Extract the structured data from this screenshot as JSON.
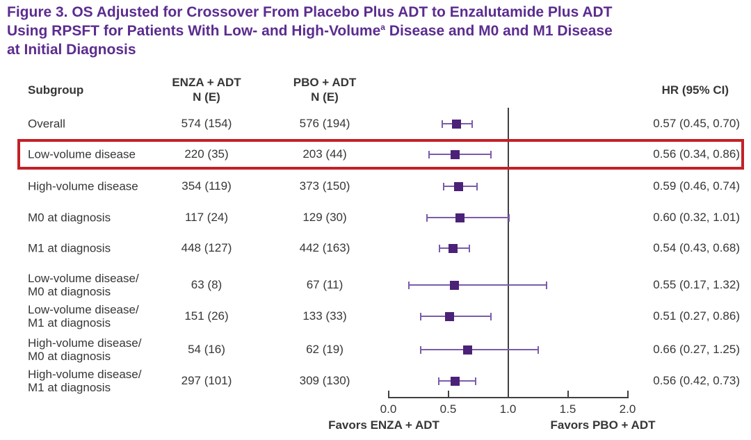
{
  "figure": {
    "title_line1": "Figure 3. OS Adjusted for Crossover From Placebo Plus ADT to Enzalutamide Plus ADT",
    "title_line2_pre": "Using RPSFT for Patients With Low- and High-Volume",
    "title_line2_sup": "a",
    "title_line2_post": " Disease and M0 and M1 Disease",
    "title_line3": "at Initial Diagnosis"
  },
  "table_headers": {
    "subgroup": "Subgroup",
    "enza_line1": "ENZA + ADT",
    "enza_line2": "N (E)",
    "pbo_line1": "PBO + ADT",
    "pbo_line2": "N (E)",
    "hr": "HR (95% CI)"
  },
  "chart_data": {
    "type": "forest",
    "x_axis": {
      "min": 0,
      "max": 2,
      "ref_line": 1.0,
      "ticks": [
        {
          "label": "0.0",
          "value": 0.0
        },
        {
          "label": "0.5",
          "value": 0.5
        },
        {
          "label": "1.0",
          "value": 1.0
        },
        {
          "label": "1.5",
          "value": 1.5
        },
        {
          "label": "2.0",
          "value": 2.0
        }
      ]
    },
    "favors_left": "Favors ENZA + ADT",
    "favors_right": "Favors PBO + ADT",
    "rows": [
      {
        "subgroup": "Overall",
        "enza_ne": "574 (154)",
        "pbo_ne": "576 (194)",
        "hr": 0.57,
        "ci_low": 0.45,
        "ci_high": 0.7,
        "hr_text": "0.57 (0.45, 0.70)",
        "highlighted": false
      },
      {
        "subgroup": "Low-volume disease",
        "enza_ne": "220 (35)",
        "pbo_ne": "203 (44)",
        "hr": 0.56,
        "ci_low": 0.34,
        "ci_high": 0.86,
        "hr_text": "0.56 (0.34, 0.86)",
        "highlighted": true
      },
      {
        "subgroup": "High-volume disease",
        "enza_ne": "354 (119)",
        "pbo_ne": "373 (150)",
        "hr": 0.59,
        "ci_low": 0.46,
        "ci_high": 0.74,
        "hr_text": "0.59 (0.46, 0.74)",
        "highlighted": false
      },
      {
        "subgroup": "M0 at diagnosis",
        "enza_ne": "117 (24)",
        "pbo_ne": "129 (30)",
        "hr": 0.6,
        "ci_low": 0.32,
        "ci_high": 1.01,
        "hr_text": "0.60 (0.32, 1.01)",
        "highlighted": false
      },
      {
        "subgroup": "M1 at diagnosis",
        "enza_ne": "448 (127)",
        "pbo_ne": "442 (163)",
        "hr": 0.54,
        "ci_low": 0.43,
        "ci_high": 0.68,
        "hr_text": "0.54 (0.43, 0.68)",
        "highlighted": false
      },
      {
        "subgroup": "Low-volume disease/M0 at diagnosis",
        "enza_ne": "63 (8)",
        "pbo_ne": "67 (11)",
        "hr": 0.55,
        "ci_low": 0.17,
        "ci_high": 1.32,
        "hr_text": "0.55 (0.17, 1.32)",
        "highlighted": false
      },
      {
        "subgroup": "Low-volume disease/M1 at diagnosis",
        "enza_ne": "151 (26)",
        "pbo_ne": "133 (33)",
        "hr": 0.51,
        "ci_low": 0.27,
        "ci_high": 0.86,
        "hr_text": "0.51 (0.27, 0.86)",
        "highlighted": false
      },
      {
        "subgroup": "High-volume disease/M0 at diagnosis",
        "enza_ne": "54 (16)",
        "pbo_ne": "62 (19)",
        "hr": 0.66,
        "ci_low": 0.27,
        "ci_high": 1.25,
        "hr_text": "0.66 (0.27, 1.25)",
        "highlighted": false
      },
      {
        "subgroup": "High-volume disease/M1 at diagnosis",
        "enza_ne": "297 (101)",
        "pbo_ne": "309 (130)",
        "hr": 0.56,
        "ci_low": 0.42,
        "ci_high": 0.73,
        "hr_text": "0.56 (0.42, 0.73)",
        "highlighted": false
      }
    ]
  },
  "colors": {
    "title": "#5b2c8f",
    "text": "#363636",
    "marker": "#4b2277",
    "whisker": "#7b5caa",
    "axis": "#404040",
    "highlight": "#c32026"
  }
}
